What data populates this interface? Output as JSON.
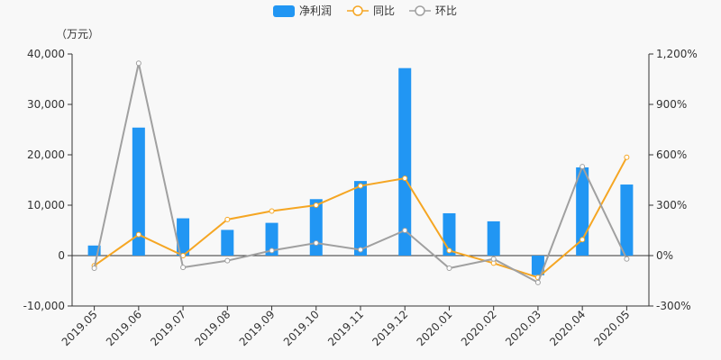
{
  "chart_data": {
    "type": "bar",
    "unit_label": "（万元）",
    "categories": [
      "2019.05",
      "2019.06",
      "2019.07",
      "2019.08",
      "2019.09",
      "2019.10",
      "2019.11",
      "2019.12",
      "2020.01",
      "2020.02",
      "2020.03",
      "2020.04",
      "2020.05"
    ],
    "y_left": {
      "min": -10000,
      "max": 40000,
      "ticks": [
        -10000,
        0,
        10000,
        20000,
        30000,
        40000
      ],
      "tick_labels": [
        "-10,000",
        "0",
        "10,000",
        "20,000",
        "30,000",
        "40,000"
      ]
    },
    "y_right": {
      "min": -300,
      "max": 1200,
      "ticks": [
        -300,
        0,
        300,
        600,
        900,
        1200
      ],
      "tick_labels": [
        "-300%",
        "0%",
        "300%",
        "600%",
        "900%",
        "1,200%"
      ]
    },
    "series": [
      {
        "name": "净利润",
        "type": "bar",
        "axis": "left",
        "color": "#2196f3",
        "values": [
          2000,
          25400,
          7400,
          5100,
          6500,
          11200,
          14800,
          37200,
          8400,
          6800,
          -3900,
          17500,
          14100
        ]
      },
      {
        "name": "同比",
        "type": "line",
        "axis": "right",
        "color": "#f5a623",
        "values": [
          -60,
          125,
          0,
          215,
          265,
          300,
          415,
          460,
          30,
          -45,
          -130,
          95,
          585
        ]
      },
      {
        "name": "环比",
        "type": "line",
        "axis": "right",
        "color": "#a0a0a0",
        "values": [
          -75,
          1145,
          -70,
          -30,
          30,
          75,
          35,
          150,
          -75,
          -20,
          -160,
          530,
          -20
        ]
      }
    ],
    "legend_position": "top-center",
    "grid": false
  }
}
